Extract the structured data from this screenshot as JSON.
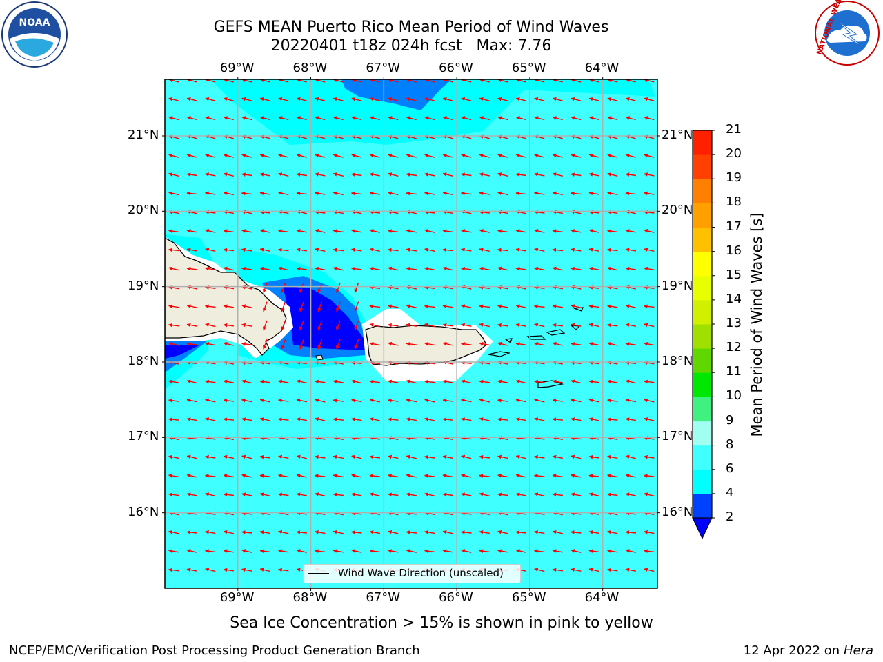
{
  "title": {
    "line1": "GEFS MEAN Puerto Rico Mean Period of Wind Waves",
    "line2": "20220401 t18z 024h fcst   Max: 7.76"
  },
  "map": {
    "lon_range": [
      -70.0,
      -63.25
    ],
    "lat_range": [
      15.0,
      21.75
    ],
    "lon_ticks": [
      "69°W",
      "68°W",
      "67°W",
      "66°W",
      "65°W",
      "64°W"
    ],
    "lat_ticks": [
      "16°N",
      "17°N",
      "18°N",
      "19°N",
      "20°N",
      "21°N"
    ],
    "gridlines": true,
    "background_value_band": "6-8",
    "arrow_color": "#ff0000",
    "land_color": "#efedde"
  },
  "colorbar": {
    "label": "Mean Period of Wind Waves [s]",
    "ticks": [
      "2",
      "4",
      "6",
      "8",
      "9",
      "10",
      "11",
      "12",
      "13",
      "14",
      "15",
      "16",
      "17",
      "18",
      "19",
      "20",
      "21"
    ],
    "colors": [
      "#0040ff",
      "#00ffff",
      "#40ffff",
      "#a0fff0",
      "#40f080",
      "#00e800",
      "#60d800",
      "#a0e000",
      "#d0f000",
      "#e8ff00",
      "#ffff00",
      "#ffc000",
      "#ffa000",
      "#ff8000",
      "#ff4000",
      "#ff2000"
    ],
    "under_color": "#0000ff"
  },
  "legend": {
    "label": "Wind Wave Direction (unscaled)"
  },
  "subnote": "Sea Ice Concentration > 15% is shown in pink to yellow",
  "footer": {
    "left": "NCEP/EMC/Verification Post Processing Product Generation Branch",
    "right_prefix": "12 Apr 2022 on ",
    "right_host": "Hera"
  },
  "logos": {
    "left": "NOAA",
    "right": "NATIONAL WEATHER SERVICE"
  }
}
